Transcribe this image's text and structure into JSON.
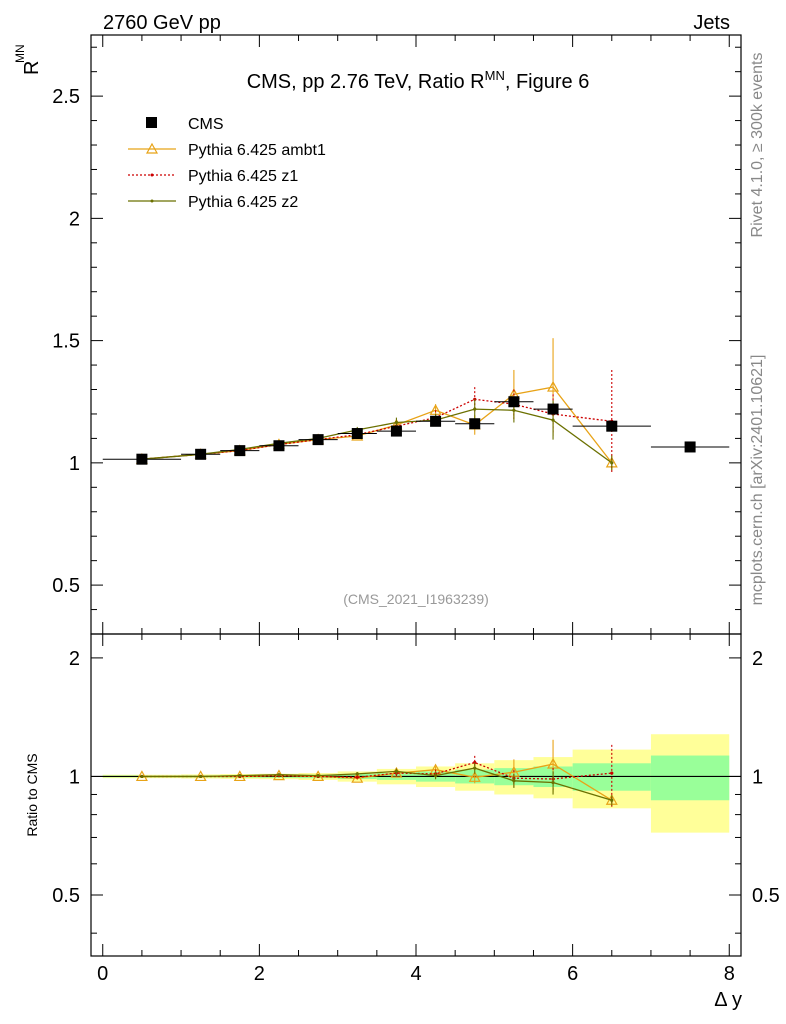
{
  "header": {
    "left": "2760 GeV pp",
    "right": "Jets",
    "title": "CMS, pp 2.76 TeV, Ratio R",
    "title_sup": "MN",
    "title_suffix": ", Figure 6"
  },
  "side_labels": {
    "rivet": "Rivet 4.1.0, ≥ 300k events",
    "mcplots": "mcplots.cern.ch [arXiv:2401.10621]"
  },
  "analysis_id": "(CMS_2021_I1963239)",
  "main_ylabel": "R",
  "main_ylabel_sup": "MN",
  "ratio_ylabel": "Ratio to CMS",
  "xlabel": "Δ y",
  "colors": {
    "data": "#000000",
    "ambt1": "#e8a317",
    "z1": "#cc0000",
    "z2": "#6b7000",
    "band_inner": "#99ff99",
    "band_outer": "#ffff99"
  },
  "chart_data": {
    "type": "scatter",
    "xlim": [
      -0.15,
      8.15
    ],
    "ylim": [
      0.3,
      2.75
    ],
    "ratio_ylim": [
      0.35,
      2.3
    ],
    "xticks": [
      0,
      2,
      4,
      6,
      8
    ],
    "yticks": [
      0.5,
      1,
      1.5,
      2,
      2.5
    ],
    "ratio_yticks": [
      0.5,
      1,
      2
    ],
    "series": [
      {
        "name": "CMS",
        "key": "data",
        "x": [
          0.5,
          1.25,
          1.75,
          2.25,
          2.75,
          3.25,
          3.75,
          4.25,
          4.75,
          5.25,
          5.75,
          6.5,
          7.5
        ],
        "y": [
          1.015,
          1.035,
          1.05,
          1.07,
          1.095,
          1.12,
          1.13,
          1.17,
          1.16,
          1.25,
          1.22,
          1.15,
          1.065
        ],
        "xerr": [
          0.5,
          0.25,
          0.25,
          0.25,
          0.25,
          0.25,
          0.25,
          0.25,
          0.25,
          0.25,
          0.25,
          0.5,
          0.5
        ]
      },
      {
        "name": "Pythia 6.425 ambt1",
        "key": "ambt1",
        "x": [
          0.5,
          1.25,
          1.75,
          2.25,
          2.75,
          3.25,
          3.75,
          4.25,
          4.75,
          5.25,
          5.75,
          6.5
        ],
        "y": [
          1.015,
          1.035,
          1.05,
          1.075,
          1.095,
          1.11,
          1.155,
          1.215,
          1.155,
          1.28,
          1.31,
          1.0
        ],
        "err": [
          0.005,
          0.006,
          0.007,
          0.008,
          0.01,
          0.012,
          0.02,
          0.025,
          0.04,
          0.1,
          0.2,
          0.03
        ],
        "ratio": [
          1.0,
          1.0,
          1.0,
          1.005,
          1.0,
          0.99,
          1.02,
          1.04,
          0.995,
          1.025,
          1.075,
          0.87
        ]
      },
      {
        "name": "Pythia 6.425 z1",
        "key": "z1",
        "x": [
          0.5,
          1.25,
          1.75,
          2.25,
          2.75,
          3.25,
          3.75,
          4.25,
          4.75,
          5.25,
          5.75,
          6.5
        ],
        "y": [
          1.015,
          1.035,
          1.05,
          1.075,
          1.095,
          1.115,
          1.15,
          1.185,
          1.26,
          1.24,
          1.2,
          1.17
        ],
        "err": [
          0.005,
          0.006,
          0.007,
          0.008,
          0.01,
          0.012,
          0.02,
          0.03,
          0.05,
          0.06,
          0.08,
          0.21
        ],
        "ratio": [
          1.0,
          1.0,
          1.0,
          1.005,
          1.0,
          0.995,
          1.02,
          1.015,
          1.085,
          0.99,
          0.985,
          1.02
        ]
      },
      {
        "name": "Pythia 6.425 z2",
        "key": "z2",
        "x": [
          0.5,
          1.25,
          1.75,
          2.25,
          2.75,
          3.25,
          3.75,
          4.25,
          4.75,
          5.25,
          5.75,
          6.5
        ],
        "y": [
          1.015,
          1.035,
          1.055,
          1.08,
          1.1,
          1.135,
          1.165,
          1.175,
          1.22,
          1.215,
          1.175,
          1.0
        ],
        "err": [
          0.005,
          0.006,
          0.007,
          0.008,
          0.01,
          0.012,
          0.02,
          0.025,
          0.04,
          0.05,
          0.08,
          0.03
        ],
        "ratio": [
          1.0,
          1.0,
          1.005,
          1.01,
          1.005,
          1.015,
          1.03,
          1.005,
          1.05,
          0.975,
          0.965,
          0.87
        ]
      }
    ],
    "ratio_bands": {
      "edges": [
        0,
        1,
        1.5,
        2,
        2.5,
        3,
        3.5,
        4,
        4.5,
        5,
        5.5,
        6,
        7,
        8
      ],
      "inner": [
        0.005,
        0.006,
        0.007,
        0.008,
        0.01,
        0.015,
        0.02,
        0.03,
        0.04,
        0.05,
        0.06,
        0.08,
        0.13
      ],
      "outer": [
        0.01,
        0.012,
        0.014,
        0.016,
        0.02,
        0.03,
        0.045,
        0.06,
        0.08,
        0.1,
        0.12,
        0.17,
        0.28
      ]
    }
  }
}
